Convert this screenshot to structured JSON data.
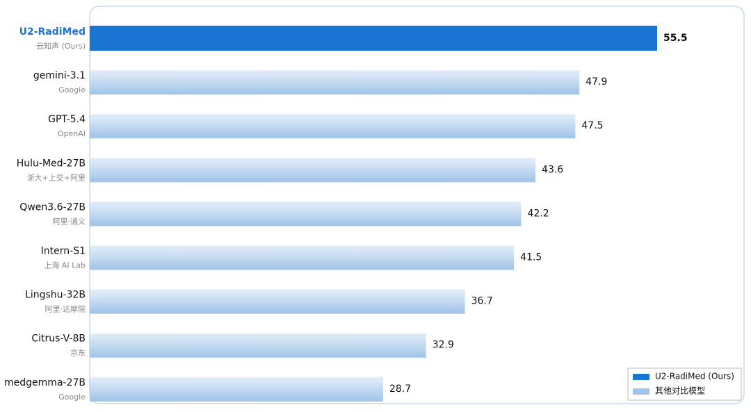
{
  "chart_data": {
    "type": "hbar",
    "categories": [
      "U2-RadiMed",
      "gemini-3.1",
      "GPT-5.4",
      "Hulu-Med-27B",
      "Qwen3.6-27B",
      "Intern-S1",
      "Lingshu-32B",
      "Citrus-V-8B",
      "medgemma-27B"
    ],
    "category_notes": [
      "云知声 (Ours)",
      "Google",
      "OpenAI",
      "浙大+上交+阿里",
      "阿里·通义",
      "上海 AI Lab",
      "阿里·达摩院",
      "京东",
      "Google"
    ],
    "series": [
      {
        "name": "U2-RadiMed (Ours)",
        "color": "#1a75d2",
        "values": [
          55.5,
          null,
          null,
          null,
          null,
          null,
          null,
          null,
          null
        ]
      },
      {
        "name": "其他对比模型",
        "color": "#9fc3e9",
        "values": [
          null,
          47.9,
          47.5,
          43.6,
          42.2,
          41.5,
          36.7,
          32.9,
          28.7
        ]
      }
    ],
    "xlim": [
      0,
      64
    ],
    "legend": "lower right"
  }
}
